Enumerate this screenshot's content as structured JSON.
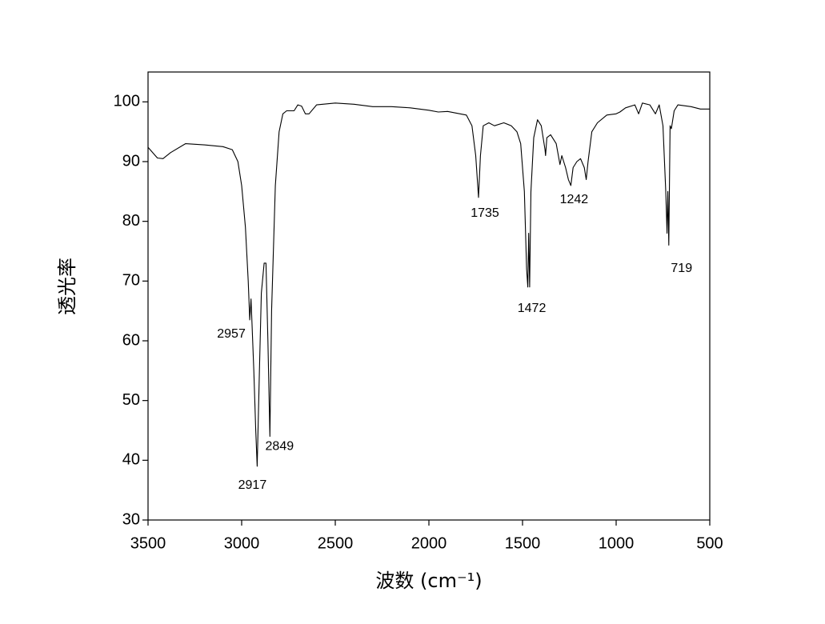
{
  "chart_data": {
    "type": "line",
    "xlabel": "波数 (cm⁻¹)",
    "ylabel": "透光率",
    "xlim": [
      3500,
      500
    ],
    "ylim": [
      30,
      105
    ],
    "xticks": [
      3500,
      3000,
      2500,
      2000,
      1500,
      1000,
      500
    ],
    "yticks": [
      30,
      40,
      50,
      60,
      70,
      80,
      90,
      100
    ],
    "color": "#000000",
    "x": [
      3500,
      3450,
      3420,
      3380,
      3300,
      3200,
      3100,
      3050,
      3020,
      3000,
      2980,
      2965,
      2957,
      2950,
      2945,
      2935,
      2925,
      2917,
      2905,
      2895,
      2880,
      2870,
      2860,
      2849,
      2840,
      2820,
      2800,
      2780,
      2760,
      2720,
      2700,
      2680,
      2660,
      2640,
      2600,
      2500,
      2400,
      2300,
      2200,
      2100,
      2000,
      1950,
      1900,
      1800,
      1770,
      1750,
      1735,
      1725,
      1710,
      1680,
      1650,
      1600,
      1560,
      1530,
      1510,
      1490,
      1478,
      1472,
      1467,
      1462,
      1455,
      1440,
      1420,
      1400,
      1380,
      1377,
      1370,
      1350,
      1320,
      1300,
      1290,
      1270,
      1255,
      1242,
      1230,
      1210,
      1190,
      1170,
      1160,
      1150,
      1130,
      1100,
      1050,
      1000,
      980,
      950,
      900,
      880,
      860,
      820,
      790,
      770,
      750,
      735,
      728,
      724,
      719,
      712,
      705,
      690,
      670,
      600,
      550,
      500
    ],
    "values": [
      92.4,
      90.6,
      90.5,
      91.5,
      93.0,
      92.8,
      92.5,
      92,
      90,
      86,
      79,
      70,
      63.5,
      67,
      63,
      55,
      45,
      39,
      55,
      68,
      73,
      73,
      60,
      44,
      65,
      86,
      95,
      98,
      98.5,
      98.5,
      99.5,
      99.3,
      98,
      98,
      99.5,
      99.8,
      99.6,
      99.2,
      99.2,
      99,
      98.6,
      98.3,
      98.4,
      97.8,
      96,
      91,
      84,
      91,
      96,
      96.5,
      96,
      96.5,
      96,
      95,
      93,
      85,
      72,
      69,
      78,
      69,
      85,
      94,
      97,
      96,
      92,
      91,
      94,
      94.5,
      93,
      89.5,
      91,
      89,
      87,
      86,
      89,
      90,
      90.5,
      89,
      87,
      90,
      95,
      96.5,
      97.8,
      98,
      98.3,
      99,
      99.5,
      98,
      99.8,
      99.5,
      98,
      99.5,
      96,
      85,
      78,
      85,
      76,
      96,
      95.5,
      98.5,
      99.5,
      99.2,
      98.8,
      98.8
    ],
    "annotations": [
      {
        "label": "2957",
        "x": 2957,
        "y": 63.5
      },
      {
        "label": "2917",
        "x": 2917,
        "y": 39
      },
      {
        "label": "2849",
        "x": 2849,
        "y": 44
      },
      {
        "label": "1735",
        "x": 1735,
        "y": 84
      },
      {
        "label": "1472",
        "x": 1472,
        "y": 69
      },
      {
        "label": "1242",
        "x": 1242,
        "y": 86
      },
      {
        "label": "719",
        "x": 719,
        "y": 76
      }
    ]
  }
}
